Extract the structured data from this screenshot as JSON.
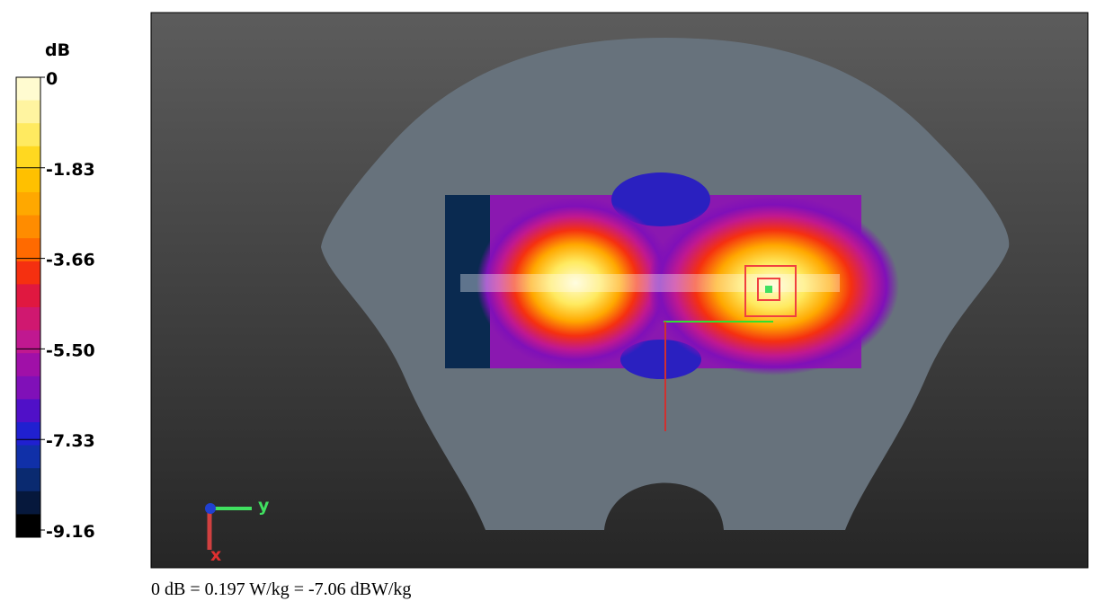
{
  "colorbar": {
    "unit": "dB",
    "ticks": [
      "0",
      "-1.83",
      "-3.66",
      "-5.50",
      "-7.33",
      "-9.16"
    ],
    "colors": [
      "#fffbd0",
      "#fff4a0",
      "#ffea60",
      "#ffd820",
      "#ffc000",
      "#ffa800",
      "#ff8c00",
      "#ff6a00",
      "#f53010",
      "#e01840",
      "#d01870",
      "#c01890",
      "#a010a8",
      "#8010b8",
      "#5010c8",
      "#2020d0",
      "#1030a8",
      "#0a2a70",
      "#06183c",
      "#000000"
    ]
  },
  "view": {
    "axes": [
      "y",
      "x"
    ]
  },
  "caption": "0 dB = 0.197 W/kg = -7.06 dBW/kg"
}
